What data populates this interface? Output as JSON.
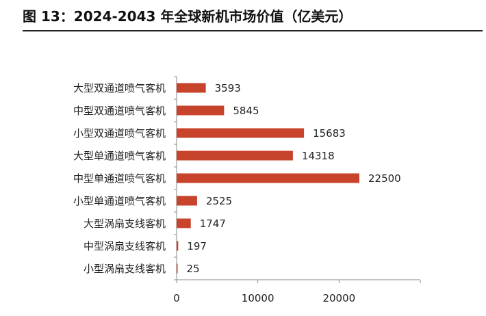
{
  "title": "图 13：2024-2043 年全球新机市场价值（亿美元）",
  "colors": {
    "bar": "#c8432b",
    "axis": "#888888",
    "text": "#222222"
  },
  "chart_data": {
    "type": "bar",
    "orientation": "horizontal",
    "title": "",
    "xlabel": "",
    "ylabel": "",
    "categories": [
      "大型双通道喷气客机",
      "中型双通道喷气客机",
      "小型双通道喷气客机",
      "大型单通道喷气客机",
      "中型单通道喷气客机",
      "小型单通道喷气客机",
      "大型涡扇支线客机",
      "中型涡扇支线客机",
      "小型涡扇支线客机"
    ],
    "values": [
      3593,
      5845,
      15683,
      14318,
      22500,
      2525,
      1747,
      197,
      25
    ],
    "xlim": [
      0,
      30000
    ],
    "xticks": [
      0,
      10000,
      20000
    ],
    "grid": false,
    "legend": "none"
  }
}
